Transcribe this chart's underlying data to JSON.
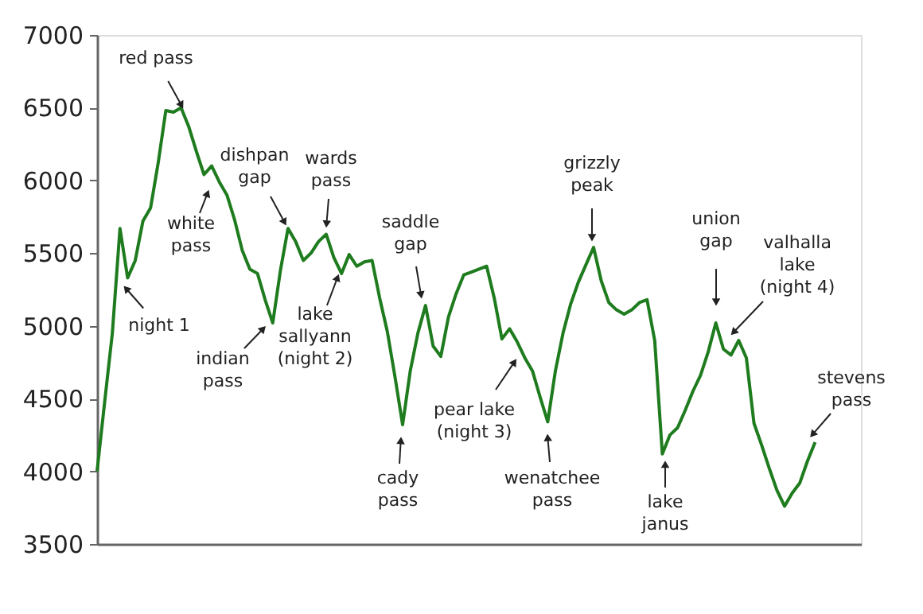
{
  "chart_data": {
    "type": "line",
    "categories": [
      null,
      null,
      null,
      null,
      null,
      null,
      null,
      null,
      null,
      null,
      null,
      null,
      null,
      null,
      null,
      null,
      null,
      null,
      null,
      null,
      null,
      null,
      null,
      null,
      null,
      null,
      null,
      null,
      null,
      null,
      null,
      null,
      null,
      null,
      null,
      null,
      null,
      null,
      null,
      null,
      null,
      null,
      null,
      null,
      null,
      null,
      null,
      null,
      null,
      null,
      null,
      null,
      null,
      null,
      null,
      null,
      null,
      null,
      null,
      null,
      null,
      null,
      null,
      null,
      null,
      null,
      null,
      null,
      null,
      null,
      null,
      null,
      null,
      null,
      null,
      null,
      null,
      null,
      null,
      null,
      null,
      null,
      null,
      null,
      null,
      null,
      null,
      null,
      null,
      null,
      null,
      null,
      null,
      null,
      null,
      null,
      null,
      null,
      null,
      null,
      null
    ],
    "series": [
      {
        "color": "#1e7b1e",
        "values": [
          4000,
          4480,
          4950,
          5670,
          5330,
          5450,
          5720,
          5810,
          6120,
          6480,
          6470,
          6500,
          6370,
          6200,
          6040,
          6100,
          5990,
          5900,
          5730,
          5520,
          5390,
          5360,
          5180,
          5020,
          5380,
          5670,
          5580,
          5450,
          5500,
          5580,
          5630,
          5470,
          5360,
          5490,
          5410,
          5440,
          5450,
          5190,
          4960,
          4650,
          4320,
          4690,
          4950,
          5140,
          4860,
          4790,
          5060,
          5220,
          5350,
          5370,
          5390,
          5410,
          5190,
          4910,
          4980,
          4890,
          4780,
          4690,
          4510,
          4340,
          4690,
          4950,
          5150,
          5300,
          5420,
          5540,
          5310,
          5160,
          5110,
          5080,
          5110,
          5160,
          5180,
          4900,
          4120,
          4250,
          4300,
          4420,
          4550,
          4660,
          4820,
          5020,
          4840,
          4800,
          4900,
          4780,
          4330,
          4180,
          4020,
          3870,
          3760,
          3850,
          3920,
          4070,
          4200,
          null,
          null,
          null,
          null,
          null,
          null
        ]
      }
    ],
    "ylim": [
      3500,
      7000
    ],
    "yticks": [
      3500,
      4000,
      4500,
      5000,
      5500,
      6000,
      6500,
      7000
    ],
    "tick_labels": "y",
    "grid": false,
    "marker": "none",
    "line_style": "solid",
    "annotations": [
      "red pass",
      "white\npass",
      "night 1",
      "indian\npass",
      "dishpan\ngap",
      "wards\npass",
      "lake\nsallyann\n(night 2)",
      "saddle\ngap",
      "cady\npass",
      "grizzly\npeak",
      "pear lake\n(night 3)",
      "wenatchee\npass",
      "lake\njanus",
      "union\ngap",
      "valhalla\nlake\n(night 4)",
      "stevens\npass"
    ]
  }
}
